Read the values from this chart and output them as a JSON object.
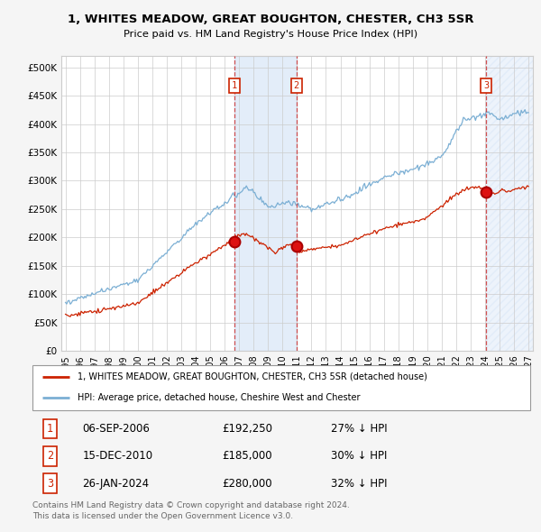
{
  "title1": "1, WHITES MEADOW, GREAT BOUGHTON, CHESTER, CH3 5SR",
  "title2": "Price paid vs. HM Land Registry's House Price Index (HPI)",
  "xlim_start": 1994.7,
  "xlim_end": 2027.3,
  "ylim": [
    0,
    520000
  ],
  "yticks": [
    0,
    50000,
    100000,
    150000,
    200000,
    250000,
    300000,
    350000,
    400000,
    450000,
    500000
  ],
  "ytick_labels": [
    "£0",
    "£50K",
    "£100K",
    "£150K",
    "£200K",
    "£250K",
    "£300K",
    "£350K",
    "£400K",
    "£450K",
    "£500K"
  ],
  "xticks": [
    1995,
    1996,
    1997,
    1998,
    1999,
    2000,
    2001,
    2002,
    2003,
    2004,
    2005,
    2006,
    2007,
    2008,
    2009,
    2010,
    2011,
    2012,
    2013,
    2014,
    2015,
    2016,
    2017,
    2018,
    2019,
    2020,
    2021,
    2022,
    2023,
    2024,
    2025,
    2026,
    2027
  ],
  "hpi_color": "#7bafd4",
  "price_color": "#cc2200",
  "marker_color": "#aa0000",
  "sale1_date": 2006.69,
  "sale1_price": 192250,
  "sale1_label": "06-SEP-2006",
  "sale1_amount": "£192,250",
  "sale1_pct": "27% ↓ HPI",
  "sale2_date": 2010.96,
  "sale2_price": 185000,
  "sale2_label": "15-DEC-2010",
  "sale2_amount": "£185,000",
  "sale2_pct": "30% ↓ HPI",
  "sale3_date": 2024.07,
  "sale3_price": 280000,
  "sale3_label": "26-JAN-2024",
  "sale3_amount": "£280,000",
  "sale3_pct": "32% ↓ HPI",
  "legend_line1": "1, WHITES MEADOW, GREAT BOUGHTON, CHESTER, CH3 5SR (detached house)",
  "legend_line2": "HPI: Average price, detached house, Cheshire West and Chester",
  "footnote1": "Contains HM Land Registry data © Crown copyright and database right 2024.",
  "footnote2": "This data is licensed under the Open Government Licence v3.0.",
  "bg_color": "#f5f5f5",
  "plot_bg": "#ffffff",
  "grid_color": "#cccccc",
  "shade_color": "#ccdff5",
  "box_label_color": "#cc2200",
  "num_box_edge": "#cc2200"
}
